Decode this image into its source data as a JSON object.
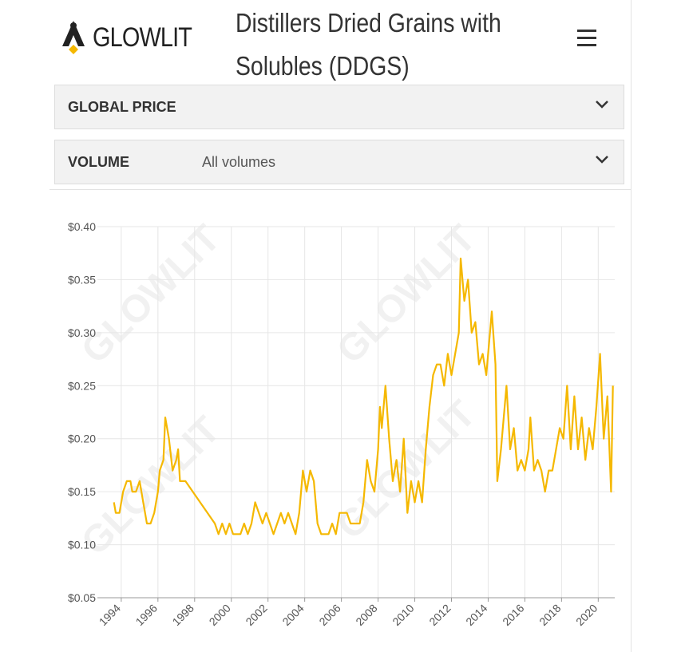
{
  "header": {
    "logo": "GLOWLIT",
    "title": "Distillers Dried Grains with Solubles (DDGS)"
  },
  "filters": [
    {
      "label": "GLOBAL PRICE"
    },
    {
      "label": "VOLUME",
      "value": "All volumes"
    }
  ],
  "chart_data": {
    "type": "line",
    "watermark": "GLOWLIT",
    "x": [
      1993.6,
      1993.7,
      1993.9,
      1994.1,
      1994.3,
      1994.5,
      1994.6,
      1994.8,
      1995.0,
      1995.2,
      1995.4,
      1995.6,
      1995.8,
      1996.0,
      1996.1,
      1996.3,
      1996.4,
      1996.6,
      1996.8,
      1997.0,
      1997.1,
      1997.2,
      1997.5,
      1999.1,
      1999.3,
      1999.5,
      1999.7,
      1999.9,
      2000.1,
      2000.5,
      2000.7,
      2000.9,
      2001.1,
      2001.3,
      2001.5,
      2001.7,
      2001.9,
      2002.1,
      2002.3,
      2002.5,
      2002.7,
      2002.9,
      2003.1,
      2003.3,
      2003.5,
      2003.7,
      2003.9,
      2004.1,
      2004.3,
      2004.5,
      2004.7,
      2004.9,
      2005.3,
      2005.5,
      2005.7,
      2005.9,
      2006.3,
      2006.5,
      2007.0,
      2007.2,
      2007.4,
      2007.6,
      2007.8,
      2007.9,
      2008.0,
      2008.1,
      2008.2,
      2008.4,
      2008.6,
      2008.8,
      2009.0,
      2009.2,
      2009.4,
      2009.6,
      2009.8,
      2010.0,
      2010.2,
      2010.4,
      2010.6,
      2010.8,
      2011.0,
      2011.2,
      2011.4,
      2011.6,
      2011.8,
      2012.0,
      2012.2,
      2012.4,
      2012.5,
      2012.7,
      2012.9,
      2013.1,
      2013.3,
      2013.5,
      2013.7,
      2013.9,
      2014.2,
      2014.4,
      2014.5,
      2014.7,
      2015.0,
      2015.2,
      2015.4,
      2015.6,
      2015.8,
      2016.0,
      2016.2,
      2016.3,
      2016.5,
      2016.7,
      2016.9,
      2017.1,
      2017.3,
      2017.5,
      2017.7,
      2017.9,
      2018.1,
      2018.3,
      2018.5,
      2018.7,
      2018.9,
      2019.1,
      2019.3,
      2019.5,
      2019.7,
      2019.9,
      2020.1,
      2020.3,
      2020.5,
      2020.7,
      2020.8
    ],
    "series": [
      {
        "color": "#f5b800",
        "values": [
          0.14,
          0.13,
          0.13,
          0.15,
          0.16,
          0.16,
          0.15,
          0.15,
          0.16,
          0.14,
          0.12,
          0.12,
          0.13,
          0.15,
          0.17,
          0.18,
          0.22,
          0.2,
          0.17,
          0.18,
          0.19,
          0.16,
          0.16,
          0.12,
          0.11,
          0.12,
          0.11,
          0.12,
          0.11,
          0.11,
          0.12,
          0.11,
          0.12,
          0.14,
          0.13,
          0.12,
          0.13,
          0.12,
          0.11,
          0.12,
          0.13,
          0.12,
          0.13,
          0.12,
          0.11,
          0.13,
          0.17,
          0.15,
          0.17,
          0.16,
          0.12,
          0.11,
          0.11,
          0.12,
          0.11,
          0.13,
          0.13,
          0.12,
          0.12,
          0.14,
          0.18,
          0.16,
          0.15,
          0.17,
          0.19,
          0.23,
          0.21,
          0.25,
          0.2,
          0.16,
          0.18,
          0.15,
          0.2,
          0.13,
          0.16,
          0.14,
          0.16,
          0.14,
          0.19,
          0.23,
          0.26,
          0.27,
          0.27,
          0.25,
          0.28,
          0.26,
          0.28,
          0.3,
          0.37,
          0.33,
          0.35,
          0.3,
          0.31,
          0.27,
          0.28,
          0.26,
          0.32,
          0.27,
          0.16,
          0.19,
          0.25,
          0.19,
          0.21,
          0.17,
          0.18,
          0.17,
          0.19,
          0.22,
          0.17,
          0.18,
          0.17,
          0.15,
          0.17,
          0.17,
          0.19,
          0.21,
          0.2,
          0.25,
          0.19,
          0.24,
          0.19,
          0.22,
          0.18,
          0.21,
          0.19,
          0.23,
          0.28,
          0.2,
          0.24,
          0.15,
          0.25
        ]
      }
    ],
    "xlim": [
      1992.7,
      2020.9
    ],
    "xticks": [
      1994,
      1996,
      1998,
      2000,
      2002,
      2004,
      2006,
      2008,
      2010,
      2012,
      2014,
      2016,
      2018,
      2020
    ],
    "ylim": [
      0.05,
      0.4
    ],
    "yticks": [
      {
        "value": 0.05,
        "label": "$0.05"
      },
      {
        "value": 0.1,
        "label": "$0.10"
      },
      {
        "value": 0.15,
        "label": "$0.15"
      },
      {
        "value": 0.2,
        "label": "$0.20"
      },
      {
        "value": 0.25,
        "label": "$0.25"
      },
      {
        "value": 0.3,
        "label": "$0.30"
      },
      {
        "value": 0.35,
        "label": "$0.35"
      },
      {
        "value": 0.4,
        "label": "$0.40"
      }
    ],
    "grid": true
  }
}
